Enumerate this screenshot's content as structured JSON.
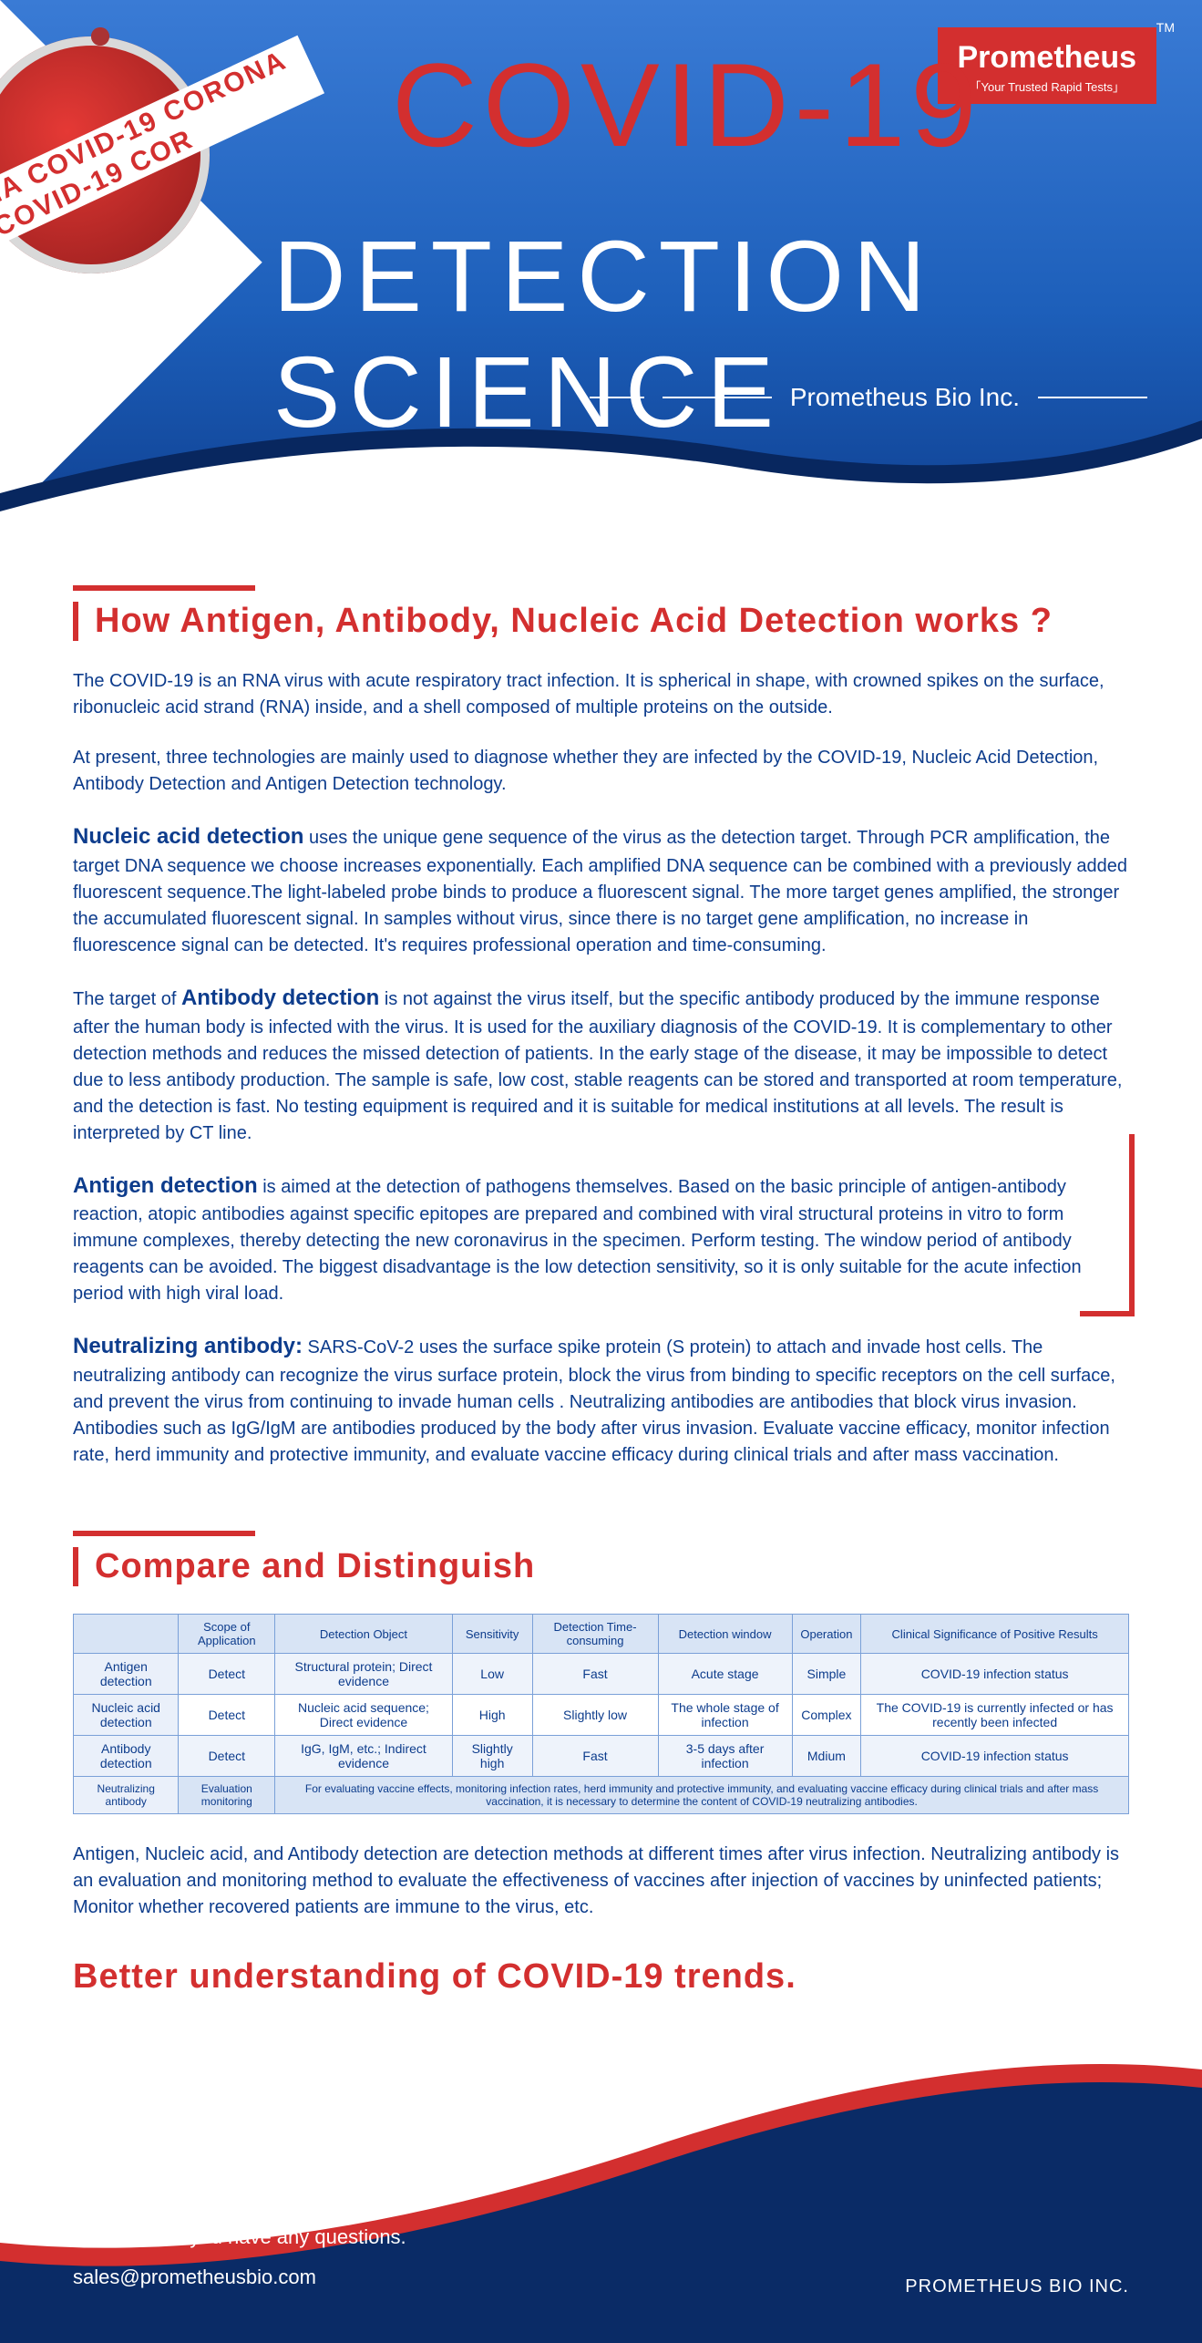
{
  "header": {
    "tape_text": "NA COVID-19 COR⁠ONA COVID-19 COR",
    "title_line1": "COVID-19",
    "title_line2": "DETECTION SCIENCE",
    "brand": "Prometheus",
    "brand_tagline": "「Your Trusted Rapid Tests」",
    "tm": "TM",
    "subtitle": "Prometheus Bio Inc."
  },
  "section1": {
    "heading": "How Antigen, Antibody, Nucleic Acid Detection works ?",
    "p1": "The COVID-19 is an RNA virus with acute respiratory tract infection. It is spherical in shape, with crowned spikes on the surface, ribonucleic acid strand (RNA) inside, and a shell composed of multiple proteins on the outside.",
    "p2": "At present, three technologies are mainly used to diagnose whether they are infected by the COVID-19, Nucleic Acid Detection,  Antibody Detection and Antigen Detection technology.",
    "nucleic_lead": "Nucleic acid detection",
    "nucleic_body": " uses the unique gene sequence of the virus as the detection target. Through PCR amplification, the target DNA sequence we choose increases exponentially. Each amplified DNA sequence can be combined with a previously added fluorescent sequence.The light-labeled probe binds to produce a fluorescent signal. The more target genes amplified, the stronger the accumulated fluorescent signal. In samples without virus, since there is no target gene amplification, no increase in fluorescence signal can be detected. It's requires professional operation and time-consuming.",
    "antibody_pre": "The target of ",
    "antibody_lead": "Antibody detection",
    "antibody_body": " is not against the virus itself, but the specific antibody produced by the immune response after the human body is infected with the virus. It is used for the auxiliary diagnosis of the COVID-19. It is complementary to other detection methods and reduces the missed detection of patients. In the early stage of the disease, it may be impossible to detect due to less antibody production. The sample is safe, low cost, stable reagents can be stored and transported at room temperature, and the detection is fast. No testing equipment is required and it is suitable for medical institutions at all levels. The result is interpreted by CT line.",
    "antigen_lead": "Antigen detection",
    "antigen_body": " is aimed at the detection of pathogens themselves. Based on the basic principle of antigen-antibody reaction, atopic antibodies against specific epitopes are prepared and combined with viral structural proteins in vitro to form immune complexes, thereby detecting the new coronavirus in the specimen. Perform testing. The window period of antibody reagents can be avoided. The biggest disadvantage is the low detection sensitivity, so it is only suitable for the acute infection period with high viral load.",
    "neut_lead": "Neutralizing antibody:",
    "neut_body": " SARS-CoV-2 uses the surface spike protein (S protein) to attach and invade host cells. The neutralizing antibody can recognize the virus surface protein, block the virus from binding to specific receptors on the cell surface, and prevent the virus from continuing to invade human cells . Neutralizing antibodies are antibodies that block virus invasion. Antibodies such as IgG/IgM are antibodies produced by the body after virus invasion. Evaluate vaccine efficacy, monitor infection rate, herd immunity and protective immunity, and evaluate vaccine efficacy during clinical trials and after mass vaccination."
  },
  "section2": {
    "heading": "Compare and Distinguish",
    "columns": [
      "",
      "Scope of Application",
      "Detection Object",
      "Sensitivity",
      "Detection Time-consuming",
      "Detection window",
      "Operation",
      "Clinical Significance of Positive Results"
    ],
    "rows": [
      [
        "Antigen detection",
        "Detect",
        "Structural protein; Direct evidence",
        "Low",
        "Fast",
        "Acute stage",
        "Simple",
        "COVID-19 infection status"
      ],
      [
        "Nucleic acid detection",
        "Detect",
        "Nucleic acid sequence; Direct evidence",
        "High",
        "Slightly low",
        "The whole stage of infection",
        "Complex",
        "The COVID-19 is currently infected or has recently been infected"
      ],
      [
        "Antibody detection",
        "Detect",
        "IgG, IgM, etc.; Indirect evidence",
        "Slightly high",
        "Fast",
        "3-5 days after infection",
        "Mdium",
        "COVID-19 infection status"
      ]
    ],
    "neut_row_label": "Neutralizing antibody",
    "neut_row_scope": "Evaluation monitoring",
    "neut_row_note": "For evaluating vaccine effects, monitoring infection rates, herd immunity and protective immunity, and evaluating vaccine efficacy during clinical trials and after mass vaccination, it is necessary to determine the content of COVID-19 neutralizing antibodies.",
    "summary": "Antigen, Nucleic acid, and Antibody detection are detection methods at different times after virus infection. Neutralizing antibody is an evaluation and monitoring method to evaluate the effectiveness of vaccines after injection of vaccines by uninfected patients; Monitor whether recovered patients are immune to the virus, etc."
  },
  "closing": "Better understanding of COVID-19 trends.",
  "footer": {
    "contact": "Contact us if you have any questions.",
    "email": "sales@prometheusbio.com",
    "company": "PROMETHEUS BIO INC."
  },
  "colors": {
    "accent_red": "#d32f2f",
    "text_blue": "#0d3c8c",
    "header_grad_top": "#3a7bd5",
    "header_grad_bottom": "#0d3c8c",
    "table_border": "#7aa0d8",
    "table_head_bg": "#d8e4f5"
  }
}
